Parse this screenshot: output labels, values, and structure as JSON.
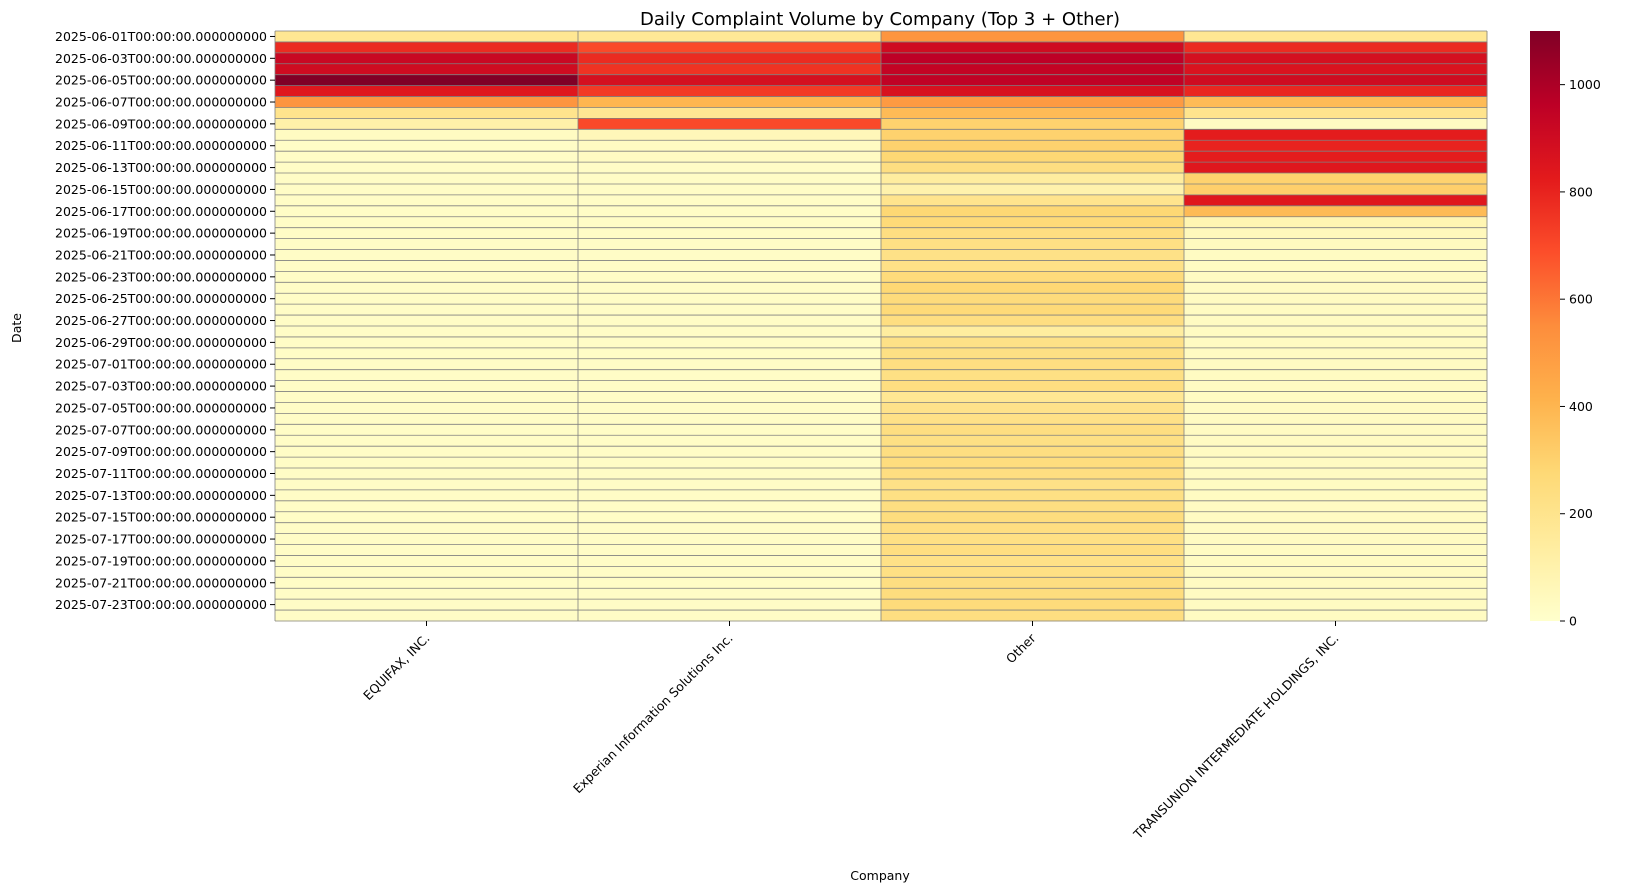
{
  "chart_data": {
    "type": "heatmap",
    "title": "Daily Complaint Volume by Company (Top 3 + Other)",
    "xlabel": "Company",
    "ylabel": "Date",
    "categories": [
      "EQUIFAX, INC.",
      "Experian Information Solutions Inc.",
      "Other",
      "TRANSUNION INTERMEDIATE HOLDINGS, INC."
    ],
    "rows": [
      "2025-06-01T00:00:00.000000000",
      "2025-06-02T00:00:00.000000000",
      "2025-06-03T00:00:00.000000000",
      "2025-06-04T00:00:00.000000000",
      "2025-06-05T00:00:00.000000000",
      "2025-06-06T00:00:00.000000000",
      "2025-06-07T00:00:00.000000000",
      "2025-06-08T00:00:00.000000000",
      "2025-06-09T00:00:00.000000000",
      "2025-06-10T00:00:00.000000000",
      "2025-06-11T00:00:00.000000000",
      "2025-06-12T00:00:00.000000000",
      "2025-06-13T00:00:00.000000000",
      "2025-06-14T00:00:00.000000000",
      "2025-06-15T00:00:00.000000000",
      "2025-06-16T00:00:00.000000000",
      "2025-06-17T00:00:00.000000000",
      "2025-06-18T00:00:00.000000000",
      "2025-06-19T00:00:00.000000000",
      "2025-06-20T00:00:00.000000000",
      "2025-06-21T00:00:00.000000000",
      "2025-06-22T00:00:00.000000000",
      "2025-06-23T00:00:00.000000000",
      "2025-06-24T00:00:00.000000000",
      "2025-06-25T00:00:00.000000000",
      "2025-06-26T00:00:00.000000000",
      "2025-06-27T00:00:00.000000000",
      "2025-06-28T00:00:00.000000000",
      "2025-06-29T00:00:00.000000000",
      "2025-06-30T00:00:00.000000000",
      "2025-07-01T00:00:00.000000000",
      "2025-07-02T00:00:00.000000000",
      "2025-07-03T00:00:00.000000000",
      "2025-07-04T00:00:00.000000000",
      "2025-07-05T00:00:00.000000000",
      "2025-07-06T00:00:00.000000000",
      "2025-07-07T00:00:00.000000000",
      "2025-07-08T00:00:00.000000000",
      "2025-07-09T00:00:00.000000000",
      "2025-07-10T00:00:00.000000000",
      "2025-07-11T00:00:00.000000000",
      "2025-07-12T00:00:00.000000000",
      "2025-07-13T00:00:00.000000000",
      "2025-07-14T00:00:00.000000000",
      "2025-07-15T00:00:00.000000000",
      "2025-07-16T00:00:00.000000000",
      "2025-07-17T00:00:00.000000000",
      "2025-07-18T00:00:00.000000000",
      "2025-07-19T00:00:00.000000000",
      "2025-07-20T00:00:00.000000000",
      "2025-07-21T00:00:00.000000000",
      "2025-07-22T00:00:00.000000000",
      "2025-07-23T00:00:00.000000000",
      "2025-07-24T00:00:00.000000000"
    ],
    "row_ticks": [
      "2025-06-01T00:00:00.000000000",
      "2025-06-03T00:00:00.000000000",
      "2025-06-05T00:00:00.000000000",
      "2025-06-07T00:00:00.000000000",
      "2025-06-09T00:00:00.000000000",
      "2025-06-11T00:00:00.000000000",
      "2025-06-13T00:00:00.000000000",
      "2025-06-15T00:00:00.000000000",
      "2025-06-17T00:00:00.000000000",
      "2025-06-19T00:00:00.000000000",
      "2025-06-21T00:00:00.000000000",
      "2025-06-23T00:00:00.000000000",
      "2025-06-25T00:00:00.000000000",
      "2025-06-27T00:00:00.000000000",
      "2025-06-29T00:00:00.000000000",
      "2025-07-01T00:00:00.000000000",
      "2025-07-03T00:00:00.000000000",
      "2025-07-05T00:00:00.000000000",
      "2025-07-07T00:00:00.000000000",
      "2025-07-09T00:00:00.000000000",
      "2025-07-11T00:00:00.000000000",
      "2025-07-13T00:00:00.000000000",
      "2025-07-15T00:00:00.000000000",
      "2025-07-17T00:00:00.000000000",
      "2025-07-19T00:00:00.000000000",
      "2025-07-21T00:00:00.000000000",
      "2025-07-23T00:00:00.000000000"
    ],
    "values": [
      [
        180,
        170,
        520,
        180
      ],
      [
        780,
        700,
        900,
        780
      ],
      [
        920,
        780,
        960,
        880
      ],
      [
        900,
        760,
        940,
        860
      ],
      [
        1100,
        880,
        950,
        900
      ],
      [
        840,
        740,
        870,
        790
      ],
      [
        520,
        400,
        500,
        380
      ],
      [
        200,
        180,
        380,
        200
      ],
      [
        110,
        700,
        300,
        30
      ],
      [
        30,
        60,
        300,
        820
      ],
      [
        20,
        30,
        300,
        800
      ],
      [
        20,
        30,
        280,
        820
      ],
      [
        20,
        20,
        240,
        840
      ],
      [
        20,
        20,
        140,
        300
      ],
      [
        20,
        20,
        100,
        310
      ],
      [
        20,
        20,
        200,
        840
      ],
      [
        20,
        20,
        280,
        380
      ],
      [
        20,
        20,
        270,
        80
      ],
      [
        20,
        20,
        240,
        50
      ],
      [
        20,
        20,
        230,
        40
      ],
      [
        20,
        20,
        220,
        30
      ],
      [
        20,
        20,
        220,
        30
      ],
      [
        20,
        20,
        260,
        30
      ],
      [
        20,
        20,
        280,
        30
      ],
      [
        20,
        20,
        260,
        30
      ],
      [
        20,
        20,
        270,
        30
      ],
      [
        20,
        20,
        240,
        30
      ],
      [
        20,
        20,
        140,
        30
      ],
      [
        20,
        20,
        220,
        30
      ],
      [
        20,
        20,
        230,
        30
      ],
      [
        20,
        20,
        240,
        30
      ],
      [
        20,
        20,
        230,
        30
      ],
      [
        20,
        20,
        240,
        30
      ],
      [
        20,
        20,
        180,
        30
      ],
      [
        20,
        20,
        210,
        30
      ],
      [
        20,
        20,
        220,
        30
      ],
      [
        20,
        20,
        240,
        30
      ],
      [
        20,
        20,
        230,
        30
      ],
      [
        20,
        20,
        240,
        30
      ],
      [
        20,
        20,
        250,
        30
      ],
      [
        20,
        20,
        240,
        30
      ],
      [
        20,
        20,
        220,
        30
      ],
      [
        20,
        20,
        230,
        30
      ],
      [
        20,
        20,
        240,
        30
      ],
      [
        20,
        20,
        250,
        30
      ],
      [
        20,
        20,
        240,
        30
      ],
      [
        20,
        20,
        230,
        30
      ],
      [
        20,
        20,
        240,
        30
      ],
      [
        20,
        20,
        220,
        30
      ],
      [
        20,
        20,
        230,
        30
      ],
      [
        20,
        20,
        240,
        30
      ],
      [
        20,
        20,
        250,
        30
      ],
      [
        20,
        20,
        260,
        30
      ],
      [
        20,
        20,
        240,
        30
      ]
    ],
    "zlim": [
      0,
      1100
    ],
    "colorbar_ticks": [
      0,
      200,
      400,
      600,
      800,
      1000
    ],
    "colormap": "YlOrRd",
    "grid_color": "#808080"
  }
}
